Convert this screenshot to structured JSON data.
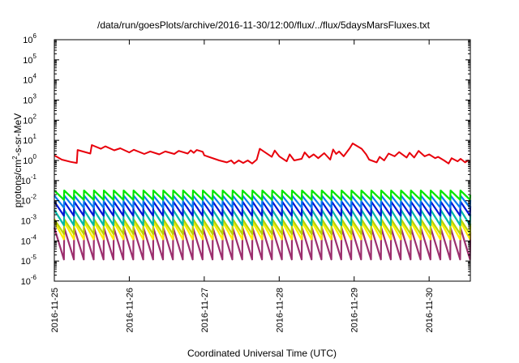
{
  "chart_data": {
    "type": "line",
    "title": "/data/run/goesPlots/archive/2016-11-30/12:00/flux/../flux/5daysMarsFluxes.txt",
    "xlabel": "Coordinated Universal Time (UTC)",
    "ylabel": "protons/cm²-s-sr-MeV",
    "y_scale": "log",
    "ylim": [
      1e-06,
      1000000.0
    ],
    "xlim": [
      0,
      5.55
    ],
    "x_origin": "2016-11-25",
    "y_ticks": [
      {
        "base": "10",
        "exp": "-6"
      },
      {
        "base": "10",
        "exp": "-5"
      },
      {
        "base": "10",
        "exp": "-4"
      },
      {
        "base": "10",
        "exp": "-3"
      },
      {
        "base": "10",
        "exp": "-2"
      },
      {
        "base": "10",
        "exp": "-1"
      },
      {
        "base": "10",
        "exp": "0"
      },
      {
        "base": "10",
        "exp": "1"
      },
      {
        "base": "10",
        "exp": "2"
      },
      {
        "base": "10",
        "exp": "3"
      },
      {
        "base": "10",
        "exp": "4"
      },
      {
        "base": "10",
        "exp": "5"
      },
      {
        "base": "10",
        "exp": "6"
      }
    ],
    "x_ticks": [
      {
        "label": "2016-11-25",
        "x": 0
      },
      {
        "label": "2016-11-26",
        "x": 1
      },
      {
        "label": "2016-11-27",
        "x": 2
      },
      {
        "label": "2016-11-28",
        "x": 3
      },
      {
        "label": "2016-11-29",
        "x": 4
      },
      {
        "label": "2016-11-30",
        "x": 5
      }
    ],
    "grid": false,
    "legend": "none",
    "series": [
      {
        "color": "#e8000b",
        "points": [
          [
            0.0,
            1.8
          ],
          [
            0.1,
            1.1
          ],
          [
            0.22,
            0.85
          ],
          [
            0.3,
            0.75
          ],
          [
            0.31,
            3.3
          ],
          [
            0.48,
            2.2
          ],
          [
            0.5,
            5.8
          ],
          [
            0.62,
            3.8
          ],
          [
            0.68,
            5.0
          ],
          [
            0.8,
            3.2
          ],
          [
            0.88,
            4.0
          ],
          [
            1.0,
            2.5
          ],
          [
            1.06,
            3.4
          ],
          [
            1.2,
            2.1
          ],
          [
            1.28,
            2.8
          ],
          [
            1.4,
            2.0
          ],
          [
            1.48,
            2.8
          ],
          [
            1.6,
            2.1
          ],
          [
            1.66,
            3.0
          ],
          [
            1.78,
            2.2
          ],
          [
            1.82,
            3.2
          ],
          [
            1.86,
            2.4
          ],
          [
            1.9,
            3.3
          ],
          [
            1.98,
            2.7
          ],
          [
            2.0,
            1.8
          ],
          [
            2.2,
            1.0
          ],
          [
            2.3,
            0.8
          ],
          [
            2.36,
            1.0
          ],
          [
            2.4,
            0.7
          ],
          [
            2.46,
            1.0
          ],
          [
            2.52,
            0.75
          ],
          [
            2.58,
            1.0
          ],
          [
            2.64,
            0.7
          ],
          [
            2.7,
            1.1
          ],
          [
            2.74,
            3.8
          ],
          [
            2.9,
            1.5
          ],
          [
            2.94,
            3.1
          ],
          [
            3.0,
            1.6
          ],
          [
            3.1,
            0.9
          ],
          [
            3.14,
            2.0
          ],
          [
            3.2,
            1.0
          ],
          [
            3.3,
            1.2
          ],
          [
            3.34,
            2.5
          ],
          [
            3.4,
            1.4
          ],
          [
            3.46,
            2.0
          ],
          [
            3.52,
            1.3
          ],
          [
            3.6,
            2.3
          ],
          [
            3.68,
            1.1
          ],
          [
            3.72,
            3.5
          ],
          [
            3.76,
            2.1
          ],
          [
            3.8,
            2.8
          ],
          [
            3.86,
            1.6
          ],
          [
            3.94,
            4.0
          ],
          [
            3.98,
            7.0
          ],
          [
            4.1,
            3.8
          ],
          [
            4.16,
            2.0
          ],
          [
            4.2,
            1.1
          ],
          [
            4.3,
            0.8
          ],
          [
            4.34,
            1.5
          ],
          [
            4.4,
            1.0
          ],
          [
            4.46,
            2.2
          ],
          [
            4.54,
            1.6
          ],
          [
            4.6,
            2.6
          ],
          [
            4.7,
            1.4
          ],
          [
            4.74,
            2.4
          ],
          [
            4.8,
            1.4
          ],
          [
            4.86,
            3.0
          ],
          [
            4.94,
            1.6
          ],
          [
            5.0,
            2.0
          ],
          [
            5.08,
            1.3
          ],
          [
            5.12,
            1.5
          ],
          [
            5.2,
            1.0
          ],
          [
            5.26,
            0.7
          ],
          [
            5.3,
            1.3
          ],
          [
            5.38,
            0.9
          ],
          [
            5.42,
            1.2
          ],
          [
            5.48,
            0.8
          ],
          [
            5.52,
            1.0
          ],
          [
            5.55,
            0.85
          ]
        ]
      },
      {
        "color": "#00e600",
        "sawtooth": {
          "n": 42,
          "hi": 0.032,
          "lo": 0.011
        }
      },
      {
        "color": "#0a7ef0",
        "sawtooth": {
          "n": 42,
          "hi": 0.018,
          "lo": 0.0045
        }
      },
      {
        "color": "#0018d6",
        "sawtooth": {
          "n": 42,
          "hi": 0.009,
          "lo": 0.0018
        }
      },
      {
        "color": "#00b7a8",
        "sawtooth": {
          "n": 42,
          "hi": 0.0035,
          "lo": 0.0006
        }
      },
      {
        "color": "#b8d400",
        "sawtooth": {
          "n": 42,
          "hi": 0.0012,
          "lo": 0.00022
        }
      },
      {
        "color": "#ffee00",
        "sawtooth": {
          "n": 42,
          "hi": 0.0009,
          "lo": 0.00012
        }
      },
      {
        "color": "#9c2f6e",
        "sawtooth": {
          "n": 42,
          "hi": 0.00045,
          "lo": 1.2e-05
        }
      }
    ]
  }
}
